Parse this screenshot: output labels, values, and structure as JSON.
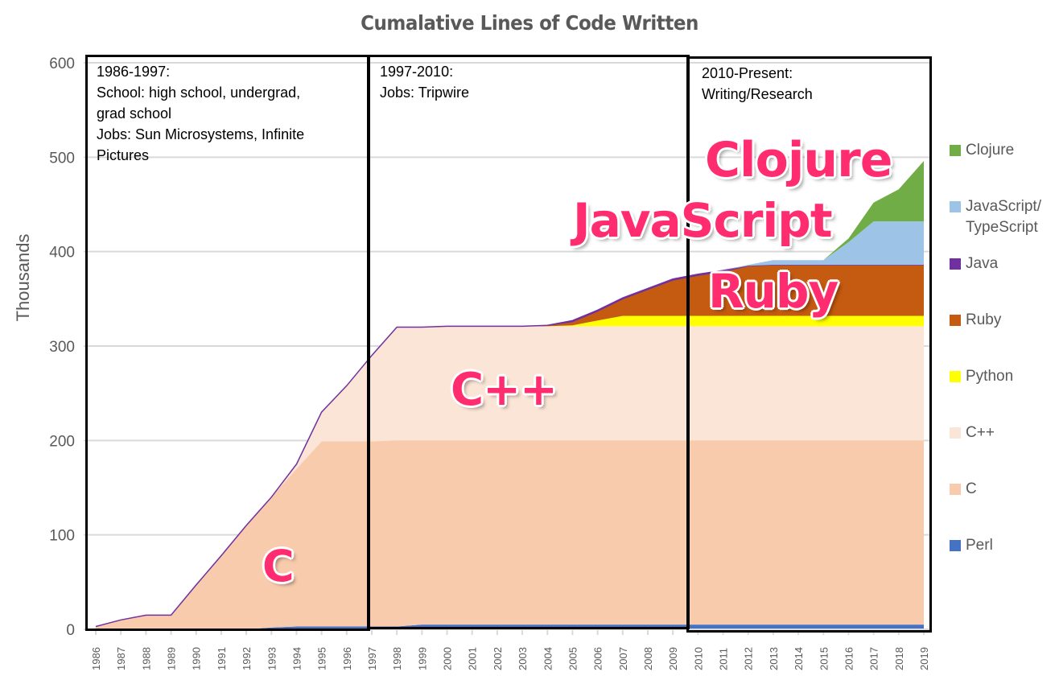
{
  "title": "Cumalative Lines of Code Written",
  "y_axis": {
    "label": "Thousands",
    "ticks": [
      "0",
      "100",
      "200",
      "300",
      "400",
      "500",
      "600"
    ]
  },
  "x_axis": {
    "ticks": [
      "1986",
      "1987",
      "1988",
      "1989",
      "1990",
      "1991",
      "1992",
      "1993",
      "1994",
      "1995",
      "1996",
      "1997",
      "1998",
      "1999",
      "2000",
      "2001",
      "2002",
      "2003",
      "2004",
      "2005",
      "2006",
      "2007",
      "2008",
      "2009",
      "2010",
      "2011",
      "2012",
      "2013",
      "2014",
      "2015",
      "2016",
      "2017",
      "2018",
      "2019"
    ]
  },
  "eras": [
    {
      "lines": [
        "1986-1997:",
        "School: high school, undergrad,",
        "grad school",
        "Jobs: Sun Microsystems, Infinite",
        "Pictures"
      ]
    },
    {
      "lines": [
        "1997-2010:",
        "Jobs: Tripwire"
      ]
    },
    {
      "lines": [
        "2010-Present:",
        "Writing/Research"
      ]
    }
  ],
  "annotations": {
    "c": "C",
    "cpp": "C++",
    "ruby": "Ruby",
    "javascript": "JavaScript",
    "clojure": "Clojure"
  },
  "legend": [
    {
      "label": "Clojure",
      "label2": "",
      "color": "#70ad47"
    },
    {
      "label": "JavaScript/",
      "label2": "TypeScript",
      "color": "#9dc3e6"
    },
    {
      "label": "Java",
      "label2": "",
      "color": "#7030a0"
    },
    {
      "label": "Ruby",
      "label2": "",
      "color": "#c55a11"
    },
    {
      "label": "Python",
      "label2": "",
      "color": "#ffff00"
    },
    {
      "label": "C++",
      "label2": "",
      "color": "#fbe5d6"
    },
    {
      "label": "C",
      "label2": "",
      "color": "#f8cbad"
    },
    {
      "label": "Perl",
      "label2": "",
      "color": "#4472c4"
    }
  ],
  "chart_data": {
    "type": "area",
    "stacked": true,
    "title": "Cumalative Lines of Code Written",
    "xlabel": "",
    "ylabel": "Thousands",
    "ylim": [
      0,
      600
    ],
    "grid": true,
    "legend_position": "right",
    "x": [
      1986,
      1987,
      1988,
      1989,
      1990,
      1991,
      1992,
      1993,
      1994,
      1995,
      1996,
      1997,
      1998,
      1999,
      2000,
      2001,
      2002,
      2003,
      2004,
      2005,
      2006,
      2007,
      2008,
      2009,
      2010,
      2011,
      2012,
      2013,
      2014,
      2015,
      2016,
      2017,
      2018,
      2019
    ],
    "series": [
      {
        "name": "Perl",
        "color": "#4472c4",
        "values": [
          0,
          0,
          0,
          0,
          0,
          0,
          0,
          2,
          3,
          3,
          3,
          3,
          3,
          5,
          5,
          5,
          5,
          5,
          5,
          5,
          5,
          5,
          5,
          5,
          5,
          5,
          5,
          5,
          5,
          5,
          5,
          5,
          5,
          5
        ]
      },
      {
        "name": "C",
        "color": "#f8cbad",
        "values": [
          3,
          10,
          15,
          15,
          47,
          78,
          110,
          138,
          167,
          196,
          196,
          196,
          197,
          195,
          195,
          195,
          195,
          195,
          195,
          195,
          195,
          195,
          195,
          195,
          195,
          195,
          195,
          195,
          195,
          195,
          195,
          195,
          195,
          195
        ]
      },
      {
        "name": "C++",
        "color": "#fbe5d6",
        "values": [
          0,
          0,
          0,
          0,
          0,
          0,
          0,
          0,
          5,
          31,
          59,
          91,
          120,
          120,
          121,
          121,
          121,
          121,
          121,
          121,
          121,
          121,
          121,
          121,
          121,
          121,
          121,
          121,
          121,
          121,
          121,
          121,
          121,
          121
        ]
      },
      {
        "name": "Python",
        "color": "#ffff00",
        "values": [
          0,
          0,
          0,
          0,
          0,
          0,
          0,
          0,
          0,
          0,
          0,
          0,
          0,
          0,
          0,
          0,
          0,
          0,
          0,
          1,
          6,
          11,
          11,
          11,
          11,
          11,
          11,
          11,
          11,
          11,
          11,
          11,
          11,
          11
        ]
      },
      {
        "name": "Ruby",
        "color": "#c55a11",
        "values": [
          0,
          0,
          0,
          0,
          0,
          0,
          0,
          0,
          0,
          0,
          0,
          0,
          0,
          0,
          0,
          0,
          0,
          0,
          1,
          4,
          10,
          18,
          28,
          38,
          43,
          47,
          53,
          54,
          54,
          54,
          54,
          54,
          54,
          54
        ]
      },
      {
        "name": "Java",
        "color": "#7030a0",
        "values": [
          0,
          0,
          0,
          0,
          0,
          0,
          0,
          0,
          0,
          0,
          0,
          0,
          0,
          0,
          0,
          0,
          0,
          0,
          0,
          1,
          1,
          1,
          1,
          1,
          1,
          1,
          0,
          0,
          0,
          0,
          0,
          0,
          0,
          0
        ]
      },
      {
        "name": "JavaScript/TypeScript",
        "color": "#9dc3e6",
        "values": [
          0,
          0,
          0,
          0,
          0,
          0,
          0,
          0,
          0,
          0,
          0,
          0,
          0,
          0,
          0,
          0,
          0,
          0,
          0,
          0,
          0,
          0,
          0,
          0,
          0,
          0,
          1,
          5,
          5,
          5,
          24,
          46,
          46,
          46
        ]
      },
      {
        "name": "Clojure",
        "color": "#70ad47",
        "values": [
          0,
          0,
          0,
          0,
          0,
          0,
          0,
          0,
          0,
          0,
          0,
          0,
          0,
          0,
          0,
          0,
          0,
          0,
          0,
          0,
          0,
          0,
          0,
          0,
          0,
          0,
          0,
          0,
          0,
          0,
          4,
          20,
          34,
          64
        ]
      }
    ]
  }
}
